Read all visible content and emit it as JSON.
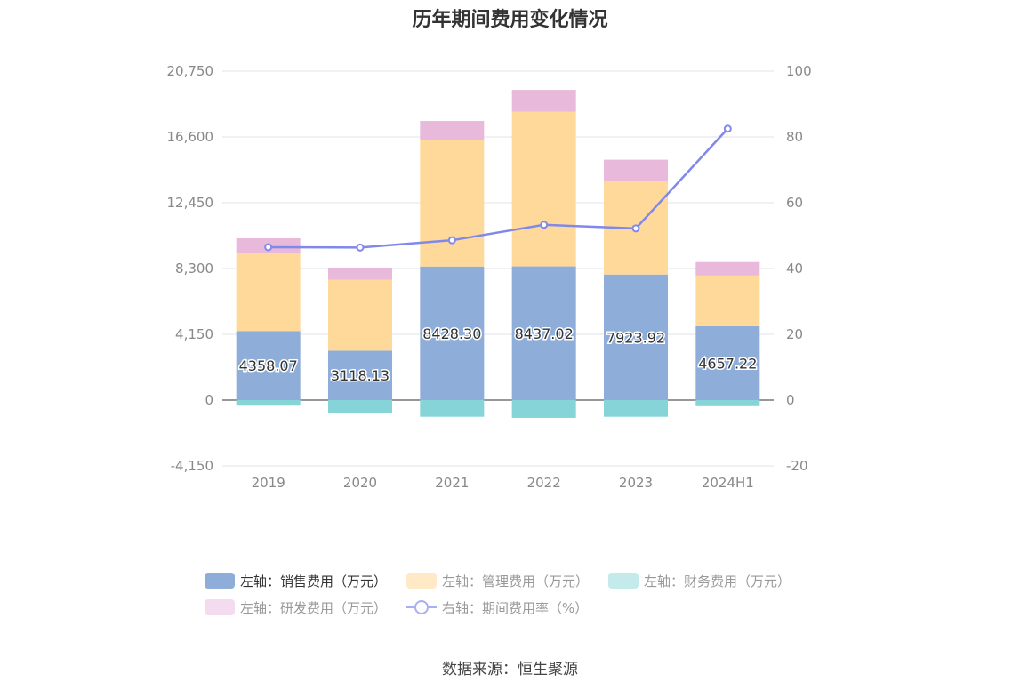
{
  "chart_data": {
    "type": "bar",
    "title": "历年期间费用变化情况",
    "categories": [
      "2019",
      "2020",
      "2021",
      "2022",
      "2023",
      "2024H1"
    ],
    "left_axis": {
      "min": -4150,
      "max": 20750,
      "ticks": [
        "-4,150",
        "0",
        "4,150",
        "8,300",
        "12,450",
        "16,600",
        "20,750"
      ],
      "tick_values": [
        -4150,
        0,
        4150,
        8300,
        12450,
        16600,
        20750
      ]
    },
    "right_axis": {
      "min": -20,
      "max": 100,
      "ticks": [
        "-20",
        "0",
        "20",
        "40",
        "60",
        "80",
        "100"
      ],
      "tick_values": [
        -20,
        0,
        20,
        40,
        60,
        80,
        100
      ]
    },
    "series": [
      {
        "name": "左轴：销售费用（万元）",
        "type": "bar",
        "stack": true,
        "color": "#8eadd9",
        "values": [
          4358.07,
          3118.13,
          8428.3,
          8437.02,
          7923.92,
          4657.22
        ],
        "labels": [
          "4358.07",
          "3118.13",
          "8428.30",
          "8437.02",
          "7923.92",
          "4657.22"
        ]
      },
      {
        "name": "左轴：管理费用（万元）",
        "type": "bar",
        "stack": true,
        "color": "#ffd99a",
        "values": [
          4950,
          4480,
          8000,
          9750,
          5900,
          3200
        ]
      },
      {
        "name": "左轴：财务费用（万元）",
        "type": "bar",
        "stack": true,
        "color": "#86d4d8",
        "values": [
          -350,
          -800,
          -1050,
          -1120,
          -1050,
          -380
        ]
      },
      {
        "name": "左轴：研发费用（万元）",
        "type": "bar",
        "stack": true,
        "color": "#e8b9db",
        "values": [
          900,
          760,
          1180,
          1380,
          1340,
          850
        ]
      },
      {
        "name": "右轴：期间费用率（%）",
        "type": "line",
        "axis": "right",
        "color": "#8088ea",
        "values": [
          46.5,
          46.4,
          48.6,
          53.3,
          52.2,
          82.5
        ]
      }
    ],
    "legend_placement": "bottom",
    "grid": true
  },
  "legend": [
    {
      "label": "左轴：销售费用（万元）",
      "color": "#8eadd9",
      "active": true,
      "kind": "box"
    },
    {
      "label": "左轴：管理费用（万元）",
      "color": "#ffe9c6",
      "active": false,
      "kind": "box"
    },
    {
      "label": "左轴：财务费用（万元）",
      "color": "#c4eaec",
      "active": false,
      "kind": "box"
    },
    {
      "label": "左轴：研发费用（万元）",
      "color": "#f3dcef",
      "active": false,
      "kind": "box"
    },
    {
      "label": "右轴：期间费用率（%）",
      "color": "#a9b0f0",
      "active": false,
      "kind": "line"
    }
  ],
  "source": "数据来源：恒生聚源"
}
